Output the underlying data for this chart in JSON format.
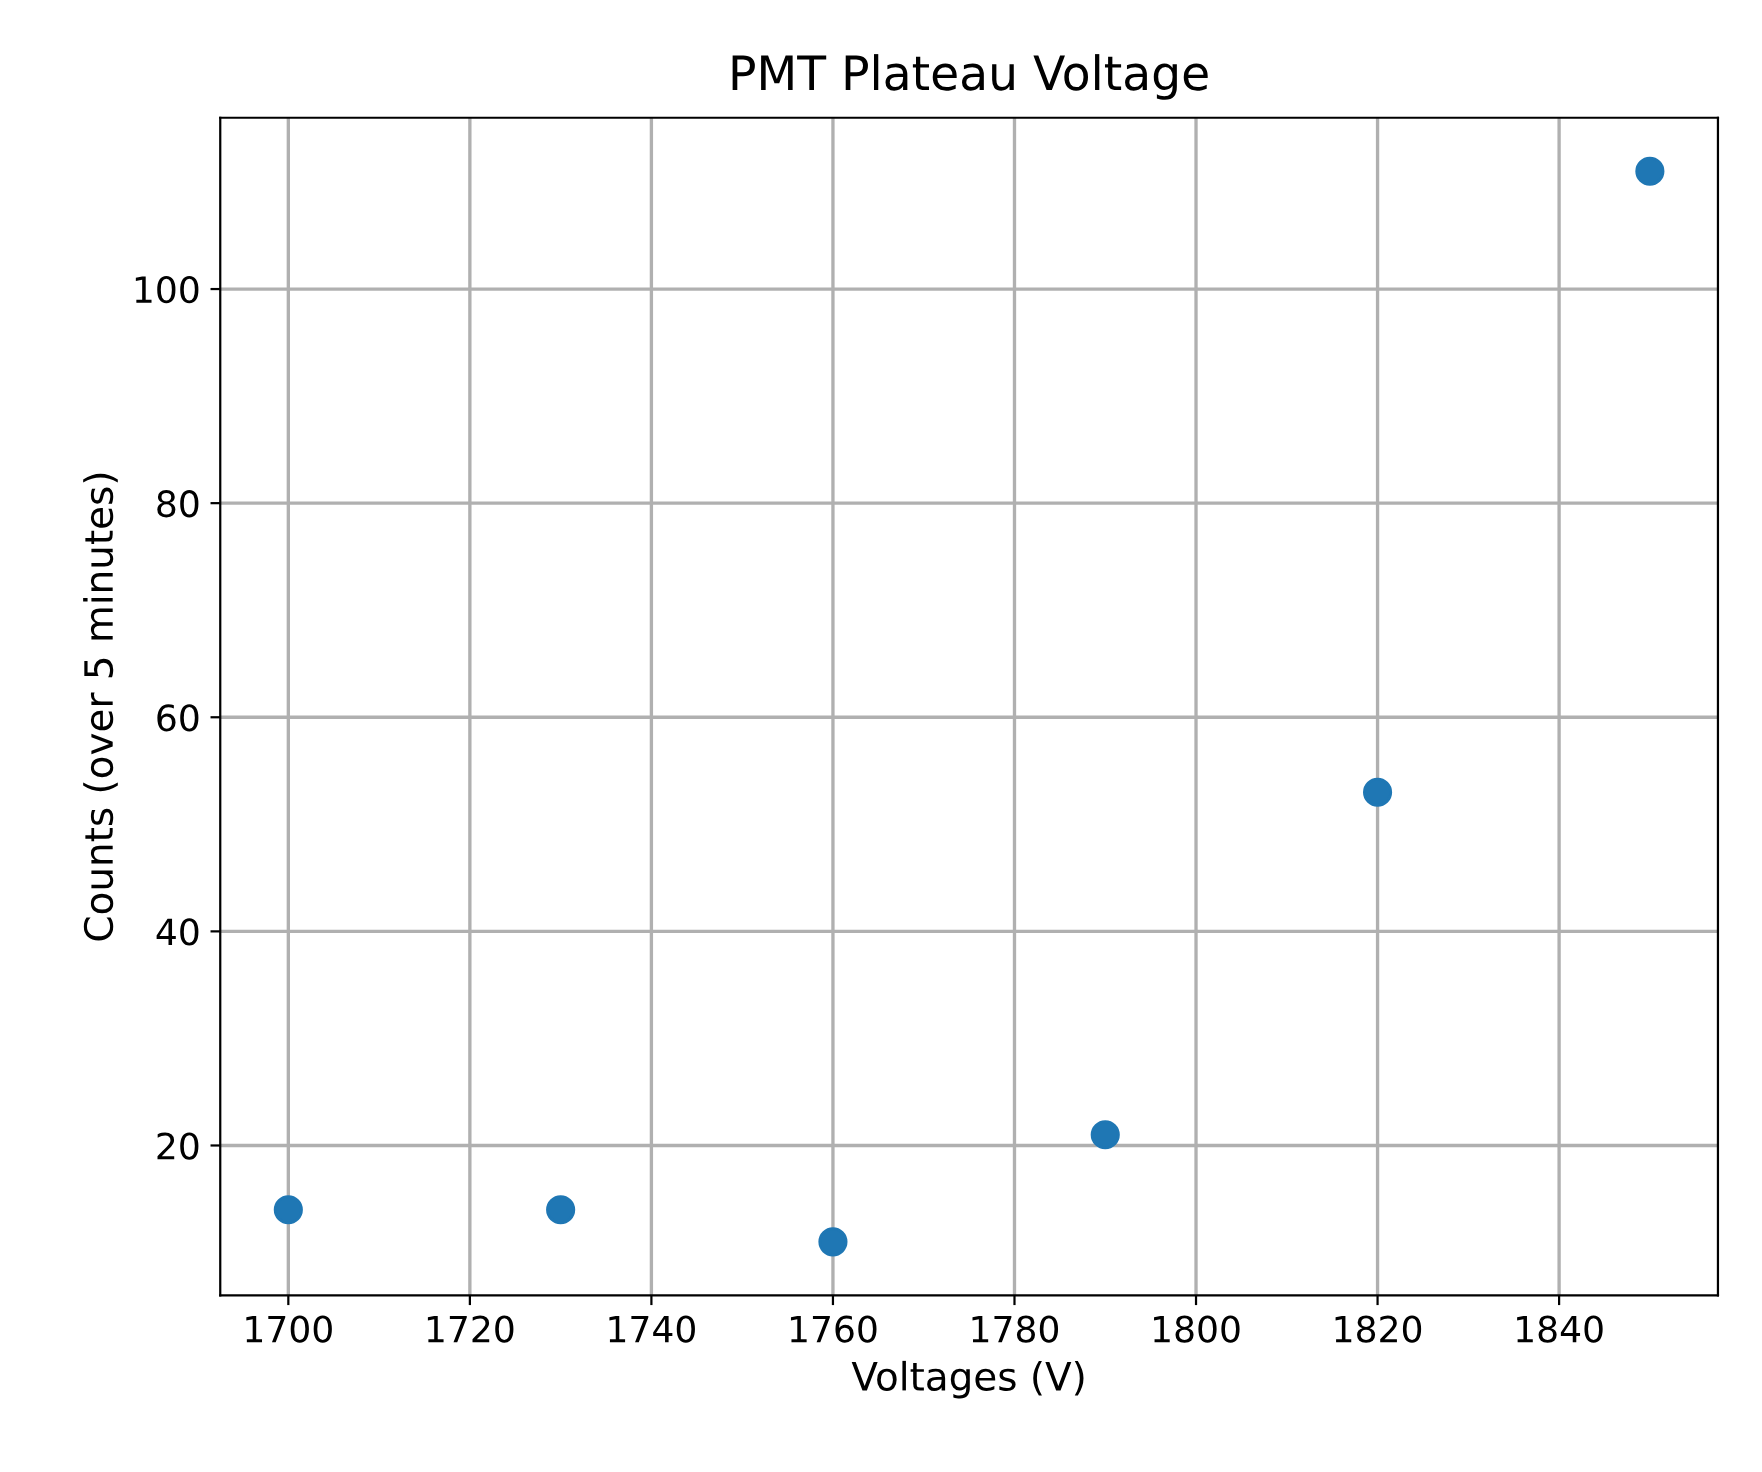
{
  "chart_data": {
    "type": "scatter",
    "title": "PMT Plateau Voltage",
    "xlabel": "Voltages (V)",
    "ylabel": "Counts (over 5 minutes)",
    "x": [
      1700,
      1730,
      1760,
      1790,
      1820,
      1850
    ],
    "series": [
      {
        "color": "#1f77b4",
        "values": [
          14,
          14,
          11,
          21,
          53,
          111
        ]
      }
    ],
    "xlim": [
      1692.5,
      1857.5
    ],
    "xticks": [
      1700,
      1720,
      1740,
      1760,
      1780,
      1800,
      1820,
      1840
    ],
    "ylim": [
      6,
      116
    ],
    "yticks": [
      20,
      40,
      60,
      80,
      100
    ],
    "grid": true,
    "marker": "circle"
  }
}
